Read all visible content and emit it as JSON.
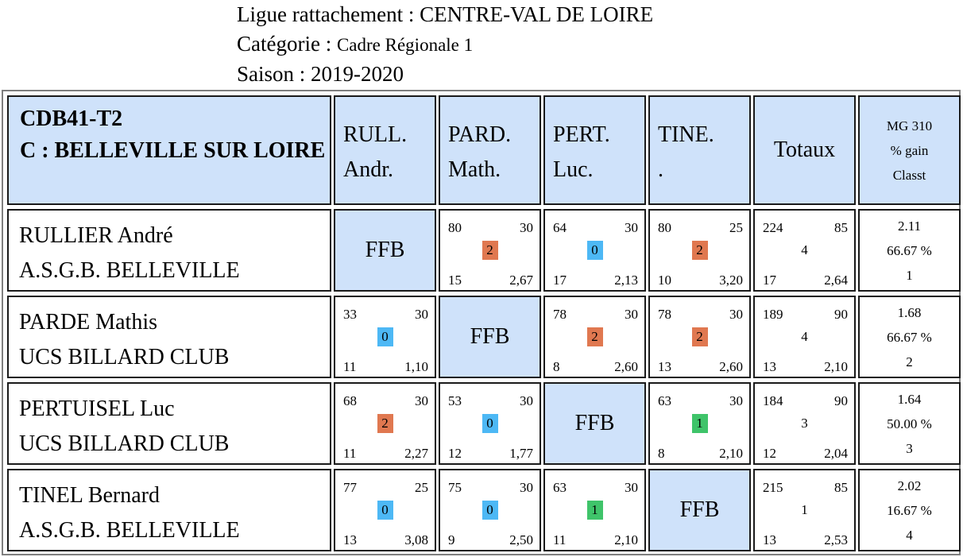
{
  "header": {
    "ligue_label": "Ligue rattachement : ",
    "ligue_value": "CENTRE-VAL DE LOIRE",
    "categorie_label": "Catégorie : ",
    "categorie_value": "Cadre Régionale 1",
    "saison_label": "Saison : ",
    "saison_value": "2019-2020"
  },
  "table": {
    "title_line1": "CDB41-T2",
    "title_line2": "C : BELLEVILLE SUR LOIRE",
    "columns": [
      {
        "line1": "RULL.",
        "line2": "Andr."
      },
      {
        "line1": "PARD.",
        "line2": "Math."
      },
      {
        "line1": "PERT.",
        "line2": "Luc."
      },
      {
        "line1": "TINE.",
        "line2": "."
      }
    ],
    "totals_label": "Totaux",
    "mg_header": {
      "line1": "MG 310",
      "line2": "% gain",
      "line3": "Classt"
    },
    "ffb_label": "FFB",
    "rows": [
      {
        "name": "RULLIER André",
        "club": "A.S.G.B. BELLEVILLE",
        "scores": [
          null,
          {
            "points": "80",
            "reprises": "30",
            "result": "2",
            "series": "15",
            "moyenne": "2,67",
            "color": "#e07850"
          },
          {
            "points": "64",
            "reprises": "30",
            "result": "0",
            "series": "17",
            "moyenne": "2,13",
            "color": "#4db8f5"
          },
          {
            "points": "80",
            "reprises": "25",
            "result": "2",
            "series": "10",
            "moyenne": "3,20",
            "color": "#e07850"
          }
        ],
        "totals": {
          "points": "224",
          "reprises": "85",
          "result": "4",
          "series": "17",
          "moyenne": "2,64"
        },
        "mg": {
          "value": "2.11",
          "gain": "66.67 %",
          "rank": "1"
        }
      },
      {
        "name": "PARDE Mathis",
        "club": "UCS BILLARD CLUB",
        "scores": [
          {
            "points": "33",
            "reprises": "30",
            "result": "0",
            "series": "11",
            "moyenne": "1,10",
            "color": "#4db8f5"
          },
          null,
          {
            "points": "78",
            "reprises": "30",
            "result": "2",
            "series": "8",
            "moyenne": "2,60",
            "color": "#e07850"
          },
          {
            "points": "78",
            "reprises": "30",
            "result": "2",
            "series": "13",
            "moyenne": "2,60",
            "color": "#e07850"
          }
        ],
        "totals": {
          "points": "189",
          "reprises": "90",
          "result": "4",
          "series": "13",
          "moyenne": "2,10"
        },
        "mg": {
          "value": "1.68",
          "gain": "66.67 %",
          "rank": "2"
        }
      },
      {
        "name": "PERTUISEL Luc",
        "club": "UCS BILLARD CLUB",
        "scores": [
          {
            "points": "68",
            "reprises": "30",
            "result": "2",
            "series": "11",
            "moyenne": "2,27",
            "color": "#e07850"
          },
          {
            "points": "53",
            "reprises": "30",
            "result": "0",
            "series": "12",
            "moyenne": "1,77",
            "color": "#4db8f5"
          },
          null,
          {
            "points": "63",
            "reprises": "30",
            "result": "1",
            "series": "8",
            "moyenne": "2,10",
            "color": "#3fc46a"
          }
        ],
        "totals": {
          "points": "184",
          "reprises": "90",
          "result": "3",
          "series": "12",
          "moyenne": "2,04"
        },
        "mg": {
          "value": "1.64",
          "gain": "50.00 %",
          "rank": "3"
        }
      },
      {
        "name": "TINEL Bernard",
        "club": "A.S.G.B. BELLEVILLE",
        "scores": [
          {
            "points": "77",
            "reprises": "25",
            "result": "0",
            "series": "13",
            "moyenne": "3,08",
            "color": "#4db8f5"
          },
          {
            "points": "75",
            "reprises": "30",
            "result": "0",
            "series": "9",
            "moyenne": "2,50",
            "color": "#4db8f5"
          },
          {
            "points": "63",
            "reprises": "30",
            "result": "1",
            "series": "11",
            "moyenne": "2,10",
            "color": "#3fc46a"
          },
          null
        ],
        "totals": {
          "points": "215",
          "reprises": "85",
          "result": "1",
          "series": "13",
          "moyenne": "2,53"
        },
        "mg": {
          "value": "2.02",
          "gain": "16.67 %",
          "rank": "4"
        }
      }
    ]
  }
}
